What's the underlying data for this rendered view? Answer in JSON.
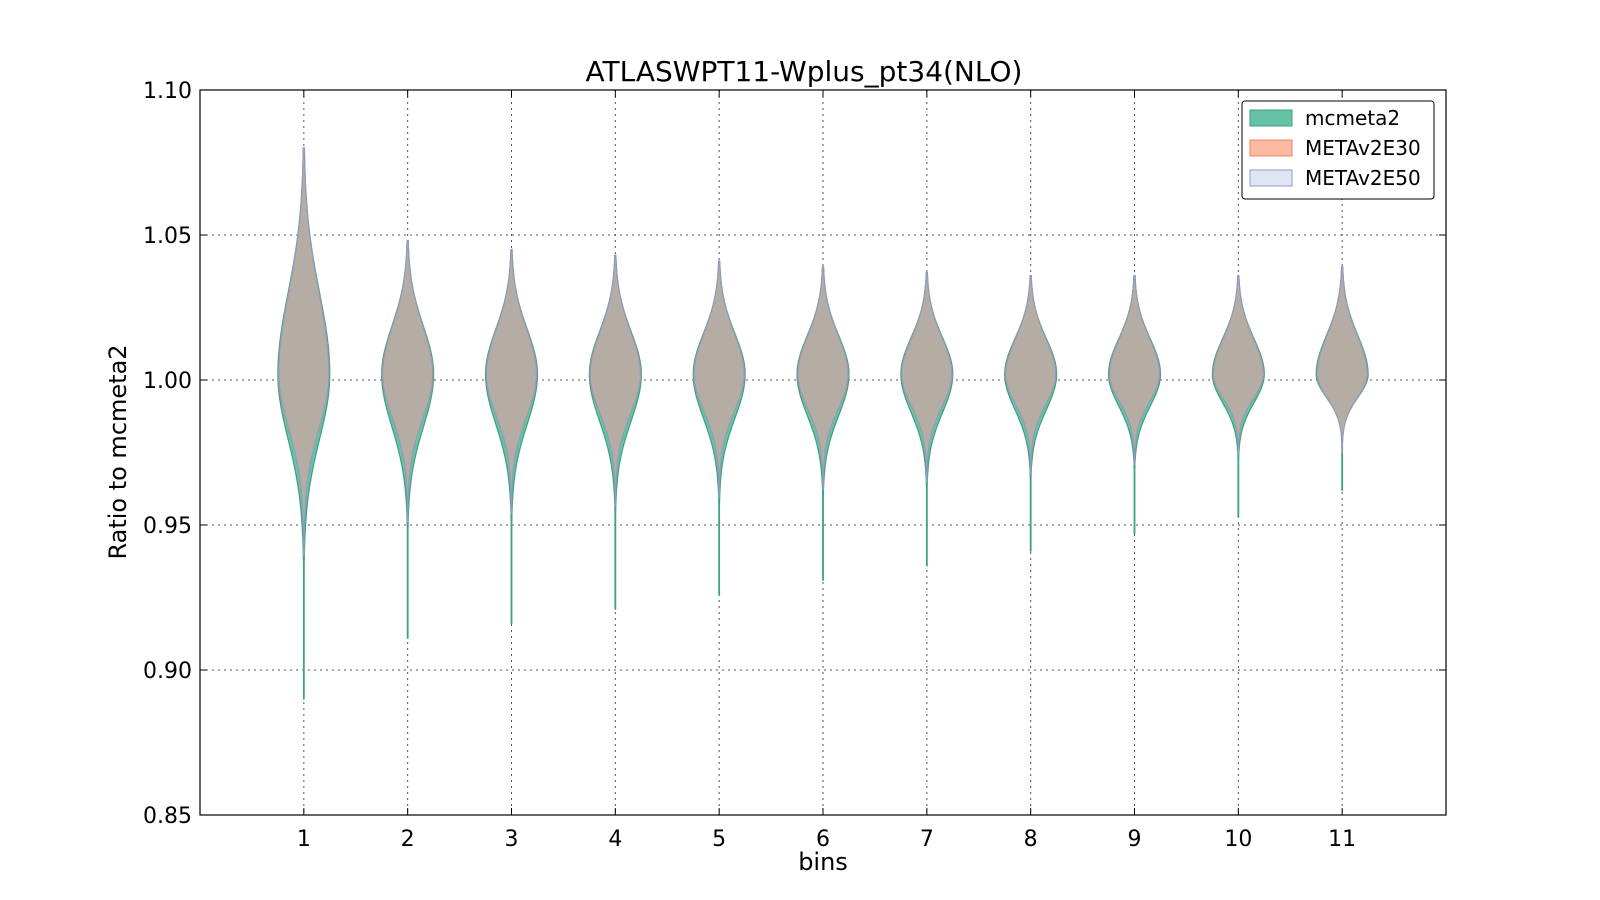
{
  "chart_data": {
    "type": "violin",
    "title": "ATLASWPT11-Wplus_pt34(NLO)",
    "xlabel": "bins",
    "ylabel": "Ratio to mcmeta2",
    "xlim": [
      0,
      12
    ],
    "ylim": [
      0.85,
      1.1
    ],
    "x_ticks": [
      "1",
      "2",
      "3",
      "4",
      "5",
      "6",
      "7",
      "8",
      "9",
      "10",
      "11"
    ],
    "y_ticks": [
      "0.85",
      "0.90",
      "0.95",
      "1.00",
      "1.05",
      "1.10"
    ],
    "grid": true,
    "legend_position": "top-right",
    "series": [
      {
        "name": "mcmeta2",
        "color": "#66c2a5",
        "edge": "#3aa37f"
      },
      {
        "name": "METAv2E30",
        "color": "#fcbba1",
        "edge": "#e8876c"
      },
      {
        "name": "METAv2E50",
        "color": "#dfe5f2",
        "edge": "#8a9bc9"
      }
    ],
    "violins": [
      {
        "bin": 1,
        "min": 0.89,
        "max": 1.08,
        "halfwidth": 0.25
      },
      {
        "bin": 2,
        "min": 0.911,
        "max": 1.048,
        "halfwidth": 0.25
      },
      {
        "bin": 3,
        "min": 0.916,
        "max": 1.045,
        "halfwidth": 0.25
      },
      {
        "bin": 4,
        "min": 0.921,
        "max": 1.043,
        "halfwidth": 0.25
      },
      {
        "bin": 5,
        "min": 0.926,
        "max": 1.041,
        "halfwidth": 0.25
      },
      {
        "bin": 6,
        "min": 0.931,
        "max": 1.039,
        "halfwidth": 0.25
      },
      {
        "bin": 7,
        "min": 0.936,
        "max": 1.037,
        "halfwidth": 0.25
      },
      {
        "bin": 8,
        "min": 0.941,
        "max": 1.036,
        "halfwidth": 0.25
      },
      {
        "bin": 9,
        "min": 0.947,
        "max": 1.036,
        "halfwidth": 0.25
      },
      {
        "bin": 10,
        "min": 0.953,
        "max": 1.036,
        "halfwidth": 0.25
      },
      {
        "bin": 11,
        "min": 0.962,
        "max": 1.039,
        "halfwidth": 0.25
      }
    ]
  }
}
